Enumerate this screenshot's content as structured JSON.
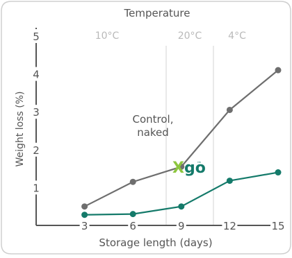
{
  "chart_data": {
    "type": "line",
    "title": "Temperature",
    "temperature_zones": [
      "10°C",
      "20°C",
      "4°C"
    ],
    "xlabel": "Storage length (days)",
    "ylabel": "Weight loss (%)",
    "x_ticks": [
      "3",
      "6",
      "9",
      "12",
      "15"
    ],
    "y_ticks": [
      "5",
      "4",
      "3",
      "2",
      "1"
    ],
    "xlim": [
      0,
      15
    ],
    "ylim": [
      0,
      5
    ],
    "grid": false,
    "series": [
      {
        "name": "Control, naked",
        "label_lines": [
          "Control,",
          "naked"
        ],
        "color": "#6e6e6e",
        "x": [
          3,
          6,
          9,
          12,
          15
        ],
        "values": [
          0.5,
          1.15,
          1.55,
          3.05,
          4.1
        ]
      },
      {
        "name": "Xgo",
        "label_main": "go",
        "label_prefix": "X",
        "label_suffix": "™",
        "color": "#147a6a",
        "accent": "#8dc63f",
        "x": [
          3,
          6,
          9,
          12,
          15
        ],
        "values": [
          0.28,
          0.3,
          0.5,
          1.18,
          1.4
        ]
      }
    ]
  }
}
